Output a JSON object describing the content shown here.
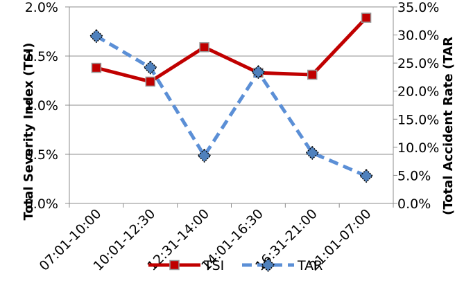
{
  "chart_data": {
    "type": "line",
    "categories": [
      "07:01-10:00",
      "10:01-12:30",
      "12:31-14:00",
      "14:01-16:30",
      "16:31-21:00",
      "21:01-07:00"
    ],
    "series": [
      {
        "name": "TSI",
        "axis": "left",
        "values": [
          1.38,
          1.24,
          1.59,
          1.33,
          1.31,
          1.89
        ],
        "color": "#c00000",
        "marker_color": "#c00000",
        "line_style": "solid"
      },
      {
        "name": "TAR",
        "axis": "right",
        "values": [
          29.8,
          24.2,
          8.5,
          23.4,
          9.0,
          4.9
        ],
        "color": "#5b8fd6",
        "marker_color": "#4f81bd",
        "line_style": "dashed"
      }
    ],
    "ylabel": "Total Severity Index (TSI)",
    "y2label": "(Total Accident Rate (TAR",
    "ylim": [
      0,
      2.0
    ],
    "y2lim": [
      0,
      35
    ],
    "yticks": [
      "0.0%",
      "0.5%",
      "1.0%",
      "1.5%",
      "2.0%"
    ],
    "y2ticks": [
      "0.0%",
      "5.0%",
      "10.0%",
      "15.0%",
      "20.0%",
      "25.0%",
      "30.0%",
      "35.0%"
    ],
    "grid": true,
    "legend": "bottom"
  }
}
